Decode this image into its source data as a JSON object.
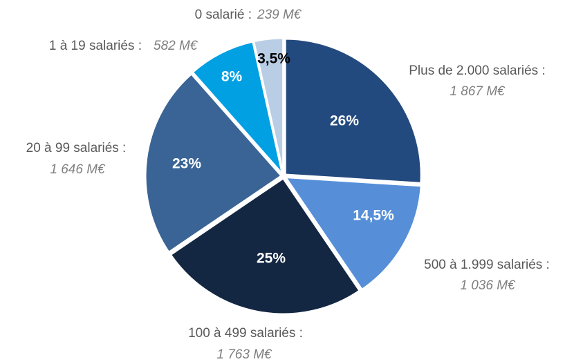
{
  "chart_data": {
    "type": "pie",
    "categories": [
      "Plus de 2.000 salariés :",
      "500 à 1.999 salariés :",
      "100 à 499 salariés :",
      "20 à 99 salariés :",
      "1 à 19 salariés :",
      "0 salarié :"
    ],
    "values": [
      26,
      14.5,
      25,
      23,
      8,
      3.5
    ],
    "value_labels": [
      "26%",
      "14,5%",
      "25%",
      "23%",
      "8%",
      "3,5%"
    ],
    "amount_labels": [
      "1 867 M€",
      "1 036 M€",
      "1 763 M€",
      "1 646 M€",
      "582 M€",
      "239 M€"
    ],
    "colors": [
      "#234a7e",
      "#568fd8",
      "#142742",
      "#3a6495",
      "#00a0e3",
      "#b9cde5"
    ],
    "value_label_colors": [
      "#ffffff",
      "#ffffff",
      "#ffffff",
      "#ffffff",
      "#ffffff",
      "#000000"
    ]
  }
}
